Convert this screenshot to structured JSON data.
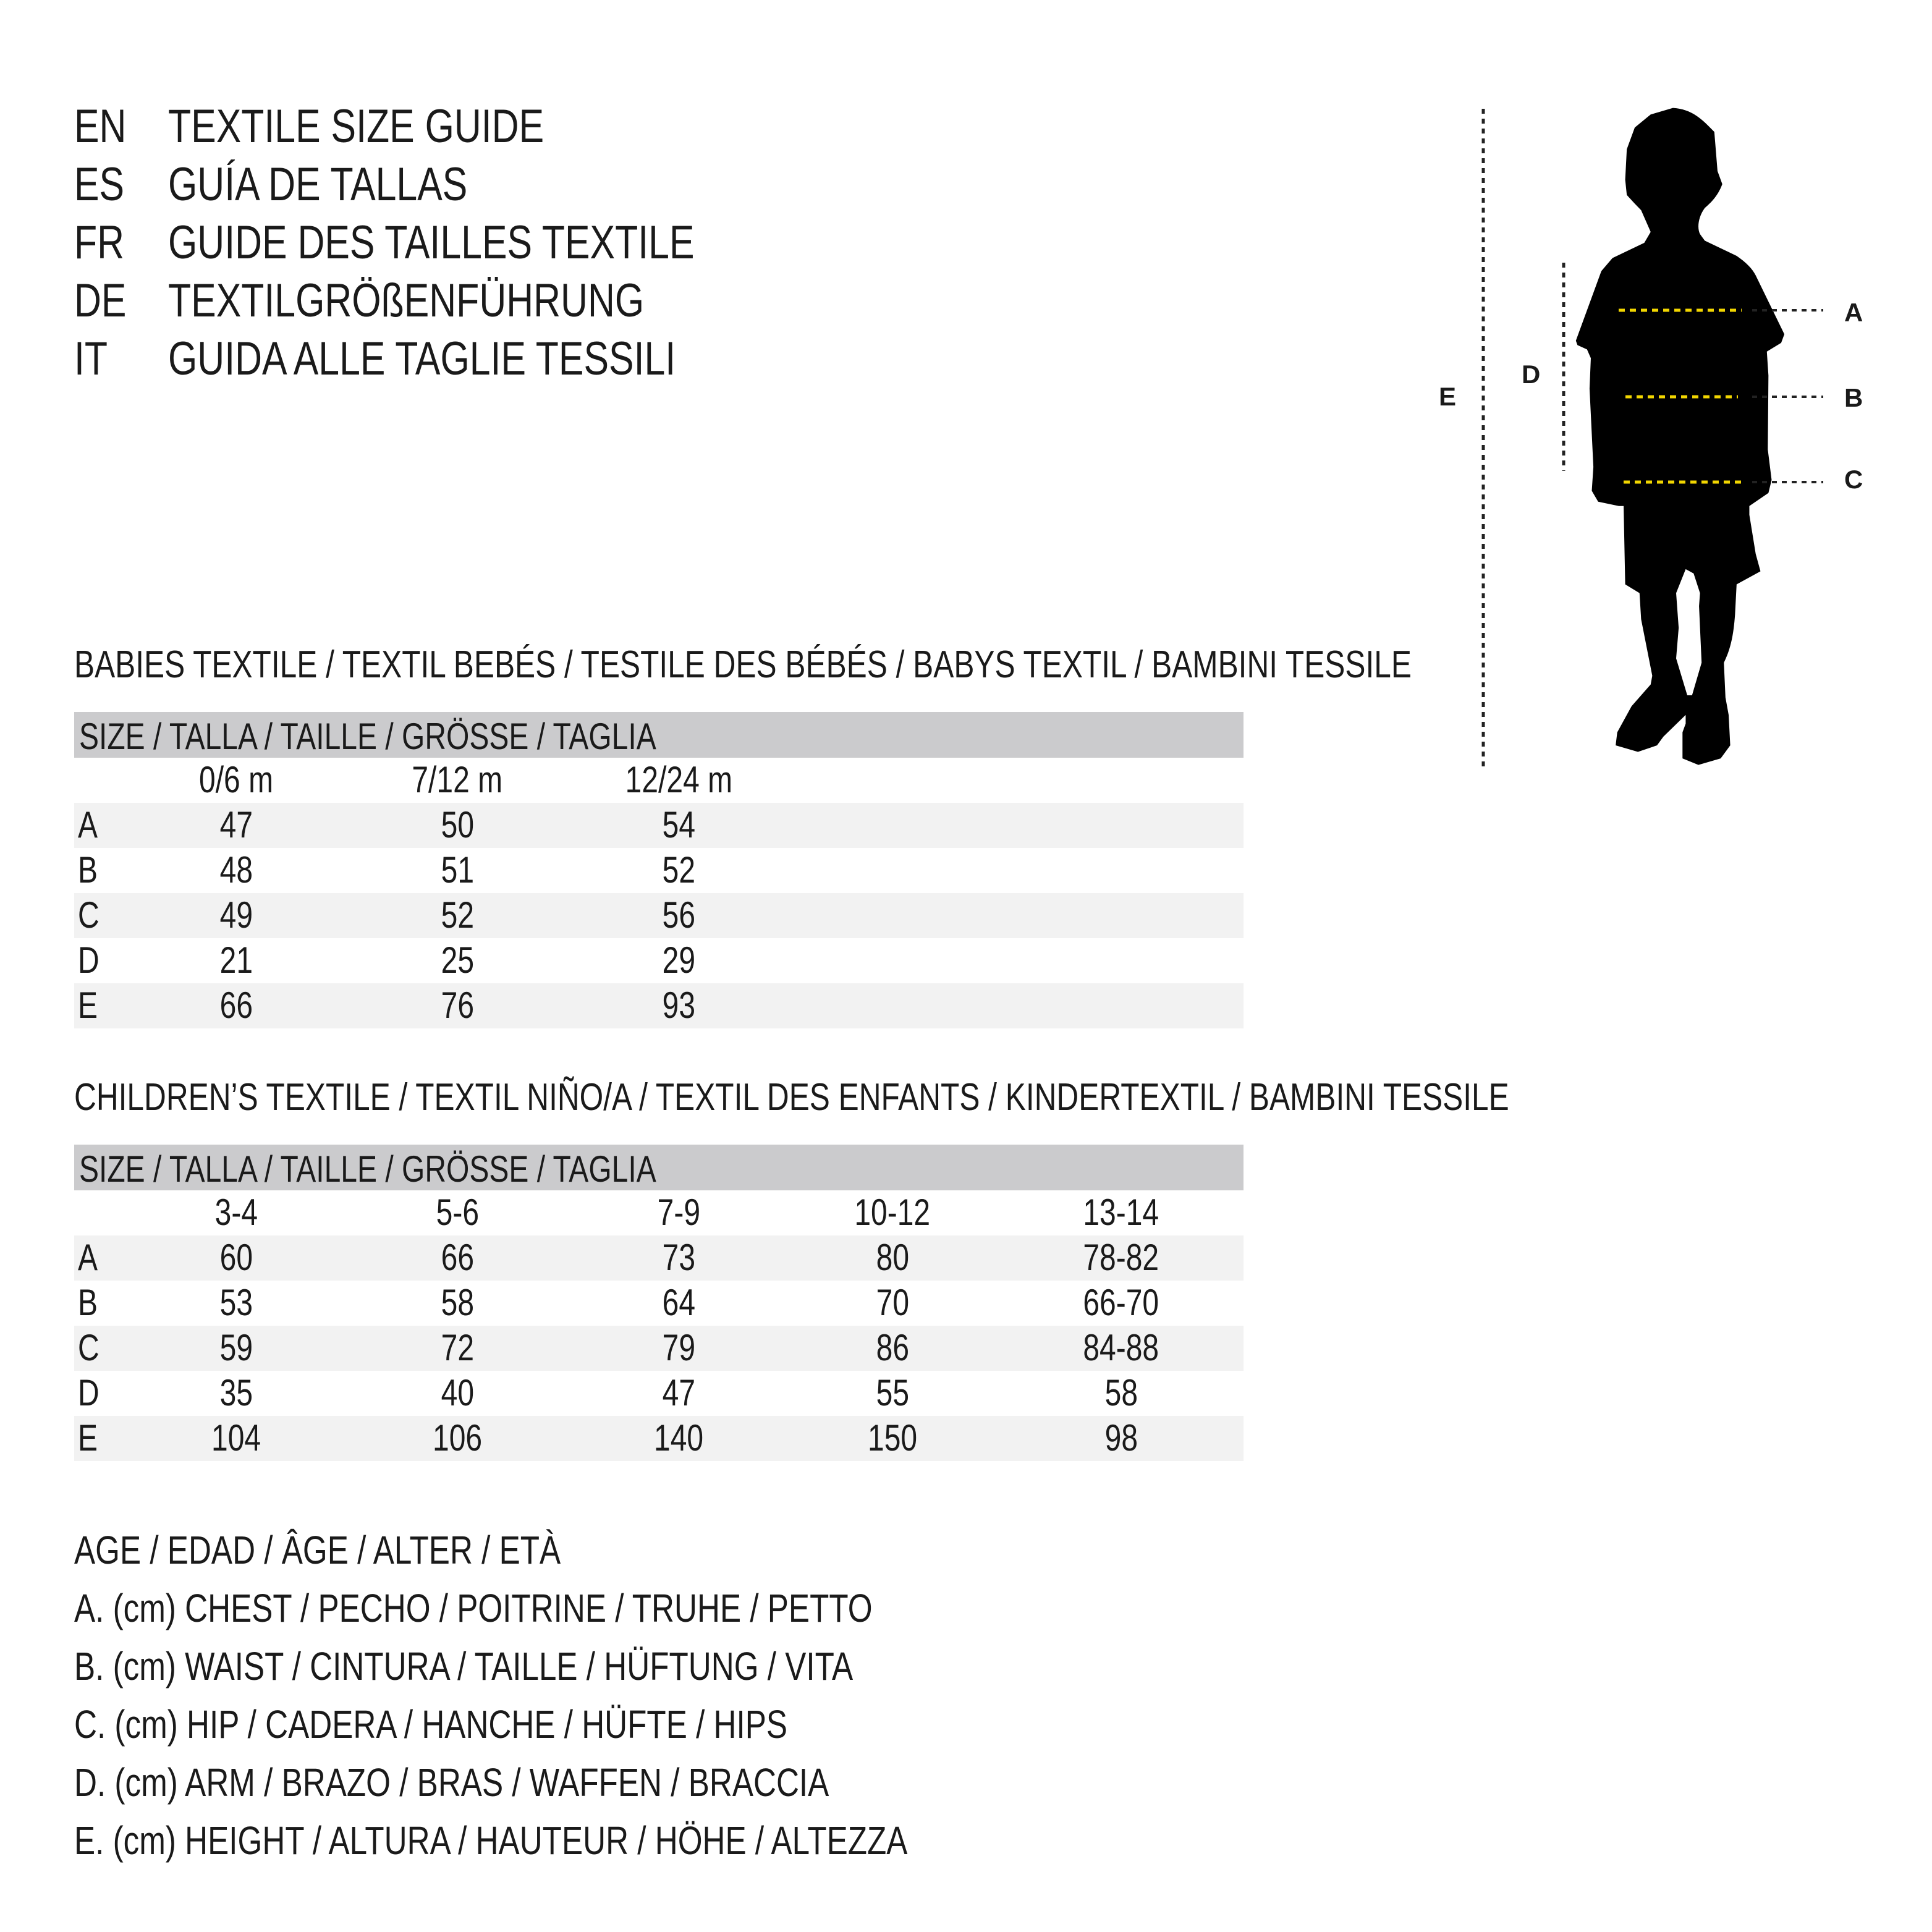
{
  "header": [
    {
      "code": "EN",
      "text": "TEXTILE SIZE GUIDE"
    },
    {
      "code": "ES",
      "text": "GUÍA DE TALLAS"
    },
    {
      "code": "FR",
      "text": "GUIDE DES TAILLES TEXTILE"
    },
    {
      "code": "DE",
      "text": "TEXTILGRÖßENFÜHRUNG"
    },
    {
      "code": "IT",
      "text": "GUIDA ALLE TAGLIE TESSILI"
    }
  ],
  "figure": {
    "labels": {
      "a": "A",
      "b": "B",
      "c": "C",
      "d": "D",
      "e": "E"
    },
    "colors": {
      "silhouette": "#000000",
      "guide_yellow": "#f2d600",
      "guide_dark": "#222222"
    }
  },
  "babies": {
    "title": "BABIES TEXTILE / TEXTIL BEBÉS / TESTILE DES BÉBÉS / BABYS TEXTIL / BAMBINI TESSILE",
    "size_header": "SIZE / TALLA / TAILLE / GRÖSSE / TAGLIA",
    "columns": [
      "0/6 m",
      "7/12 m",
      "12/24 m"
    ],
    "rows": [
      {
        "label": "A",
        "values": [
          "47",
          "50",
          "54"
        ]
      },
      {
        "label": "B",
        "values": [
          "48",
          "51",
          "52"
        ]
      },
      {
        "label": "C",
        "values": [
          "49",
          "52",
          "56"
        ]
      },
      {
        "label": "D",
        "values": [
          "21",
          "25",
          "29"
        ]
      },
      {
        "label": "E",
        "values": [
          "66",
          "76",
          "93"
        ]
      }
    ]
  },
  "children": {
    "title": "CHILDREN’S TEXTILE / TEXTIL NIÑO/A / TEXTIL DES ENFANTS / KINDERTEXTIL / BAMBINI TESSILE",
    "size_header": "SIZE / TALLA / TAILLE / GRÖSSE / TAGLIA",
    "columns": [
      "3-4",
      "5-6",
      "7-9",
      "10-12",
      "13-14"
    ],
    "rows": [
      {
        "label": "A",
        "values": [
          "60",
          "66",
          "73",
          "80",
          "78-82"
        ]
      },
      {
        "label": "B",
        "values": [
          "53",
          "58",
          "64",
          "70",
          "66-70"
        ]
      },
      {
        "label": "C",
        "values": [
          "59",
          "72",
          "79",
          "86",
          "84-88"
        ]
      },
      {
        "label": "D",
        "values": [
          "35",
          "40",
          "47",
          "55",
          "58"
        ]
      },
      {
        "label": "E",
        "values": [
          "104",
          "106",
          "140",
          "150",
          "98"
        ]
      }
    ]
  },
  "legend": [
    "AGE / EDAD / ÂGE / ALTER / ETÀ",
    "A. (cm) CHEST / PECHO / POITRINE / TRUHE / PETTO",
    "B. (cm) WAIST / CINTURA / TAILLE / HÜFTUNG / VITA",
    "C. (cm) HIP / CADERA / HANCHE / HÜFTE / HIPS",
    "D. (cm) ARM / BRAZO / BRAS / WAFFEN / BRACCIA",
    "E. (cm) HEIGHT / ALTURA / HAUTEUR / HÖHE / ALTEZZA"
  ]
}
